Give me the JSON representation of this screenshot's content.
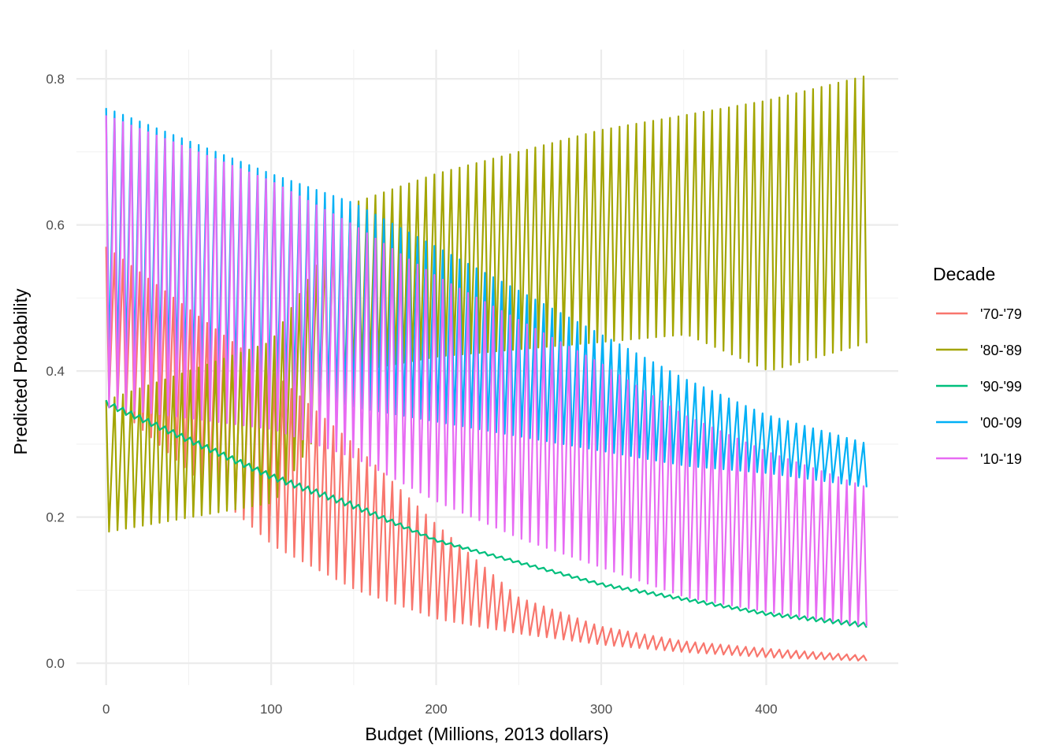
{
  "chart_data": {
    "type": "line",
    "title": "",
    "xlabel": "Budget (Millions, 2013 dollars)",
    "ylabel": "Predicted Probability",
    "xlim": [
      -18,
      480
    ],
    "ylim": [
      -0.03,
      0.84
    ],
    "x_ticks": [
      0,
      100,
      200,
      300,
      400
    ],
    "x_tick_labels": [
      "0",
      "100",
      "200",
      "300",
      "400"
    ],
    "y_ticks": [
      0.0,
      0.2,
      0.4,
      0.6,
      0.8
    ],
    "y_tick_labels": [
      "0.0",
      "0.2",
      "0.4",
      "0.6",
      "0.8"
    ],
    "grid": true,
    "legend_position": "right",
    "legend_title": "Decade",
    "sampling_note_x_max": 462,
    "series": [
      {
        "name": "'70-'79",
        "color": "#F8766D",
        "upper_envelope_x": [
          0,
          100,
          150,
          200,
          250,
          300,
          350,
          400,
          462
        ],
        "upper_envelope_y": [
          0.57,
          0.4,
          0.3,
          0.19,
          0.09,
          0.05,
          0.03,
          0.02,
          0.01
        ],
        "lower_envelope_x": [
          0,
          100,
          150,
          200,
          250,
          300,
          350,
          400,
          462
        ],
        "lower_envelope_y": [
          0.36,
          0.16,
          0.1,
          0.06,
          0.04,
          0.025,
          0.015,
          0.008,
          0.003
        ]
      },
      {
        "name": "'80-'89",
        "color": "#A3A500",
        "upper_envelope_x": [
          0,
          100,
          150,
          200,
          250,
          300,
          350,
          400,
          462
        ],
        "upper_envelope_y": [
          0.36,
          0.44,
          0.63,
          0.67,
          0.7,
          0.73,
          0.75,
          0.77,
          0.805
        ],
        "lower_envelope_x": [
          0,
          100,
          150,
          200,
          250,
          300,
          350,
          400,
          462
        ],
        "lower_envelope_y": [
          0.18,
          0.22,
          0.4,
          0.42,
          0.43,
          0.44,
          0.45,
          0.4,
          0.44
        ]
      },
      {
        "name": "'90-'99",
        "color": "#00BF7D",
        "upper_envelope_x": [
          0,
          100,
          150,
          200,
          250,
          300,
          350,
          400,
          462
        ],
        "upper_envelope_y": [
          0.36,
          0.26,
          0.22,
          0.17,
          0.14,
          0.11,
          0.09,
          0.07,
          0.055
        ],
        "lower_envelope_x": [
          0,
          100,
          150,
          200,
          250,
          300,
          350,
          400,
          462
        ],
        "lower_envelope_y": [
          0.35,
          0.25,
          0.21,
          0.165,
          0.135,
          0.105,
          0.085,
          0.065,
          0.048
        ]
      },
      {
        "name": "'00-'09",
        "color": "#00B0F6",
        "upper_envelope_x": [
          0,
          100,
          150,
          200,
          250,
          300,
          350,
          400,
          462
        ],
        "upper_envelope_y": [
          0.76,
          0.67,
          0.63,
          0.57,
          0.51,
          0.45,
          0.39,
          0.34,
          0.3
        ],
        "lower_envelope_x": [
          0,
          100,
          150,
          200,
          250,
          300,
          350,
          400,
          462
        ],
        "lower_envelope_y": [
          0.42,
          0.38,
          0.35,
          0.33,
          0.31,
          0.29,
          0.27,
          0.26,
          0.24
        ]
      },
      {
        "name": "'10-'19",
        "color": "#E76BF3",
        "upper_envelope_x": [
          0,
          100,
          150,
          200,
          250,
          300,
          350,
          400,
          462
        ],
        "upper_envelope_y": [
          0.75,
          0.66,
          0.6,
          0.53,
          0.47,
          0.41,
          0.34,
          0.29,
          0.24
        ],
        "lower_envelope_x": [
          0,
          100,
          150,
          200,
          250,
          300,
          350,
          400,
          462
        ],
        "lower_envelope_y": [
          0.35,
          0.32,
          0.28,
          0.22,
          0.17,
          0.13,
          0.09,
          0.07,
          0.05
        ]
      }
    ]
  }
}
